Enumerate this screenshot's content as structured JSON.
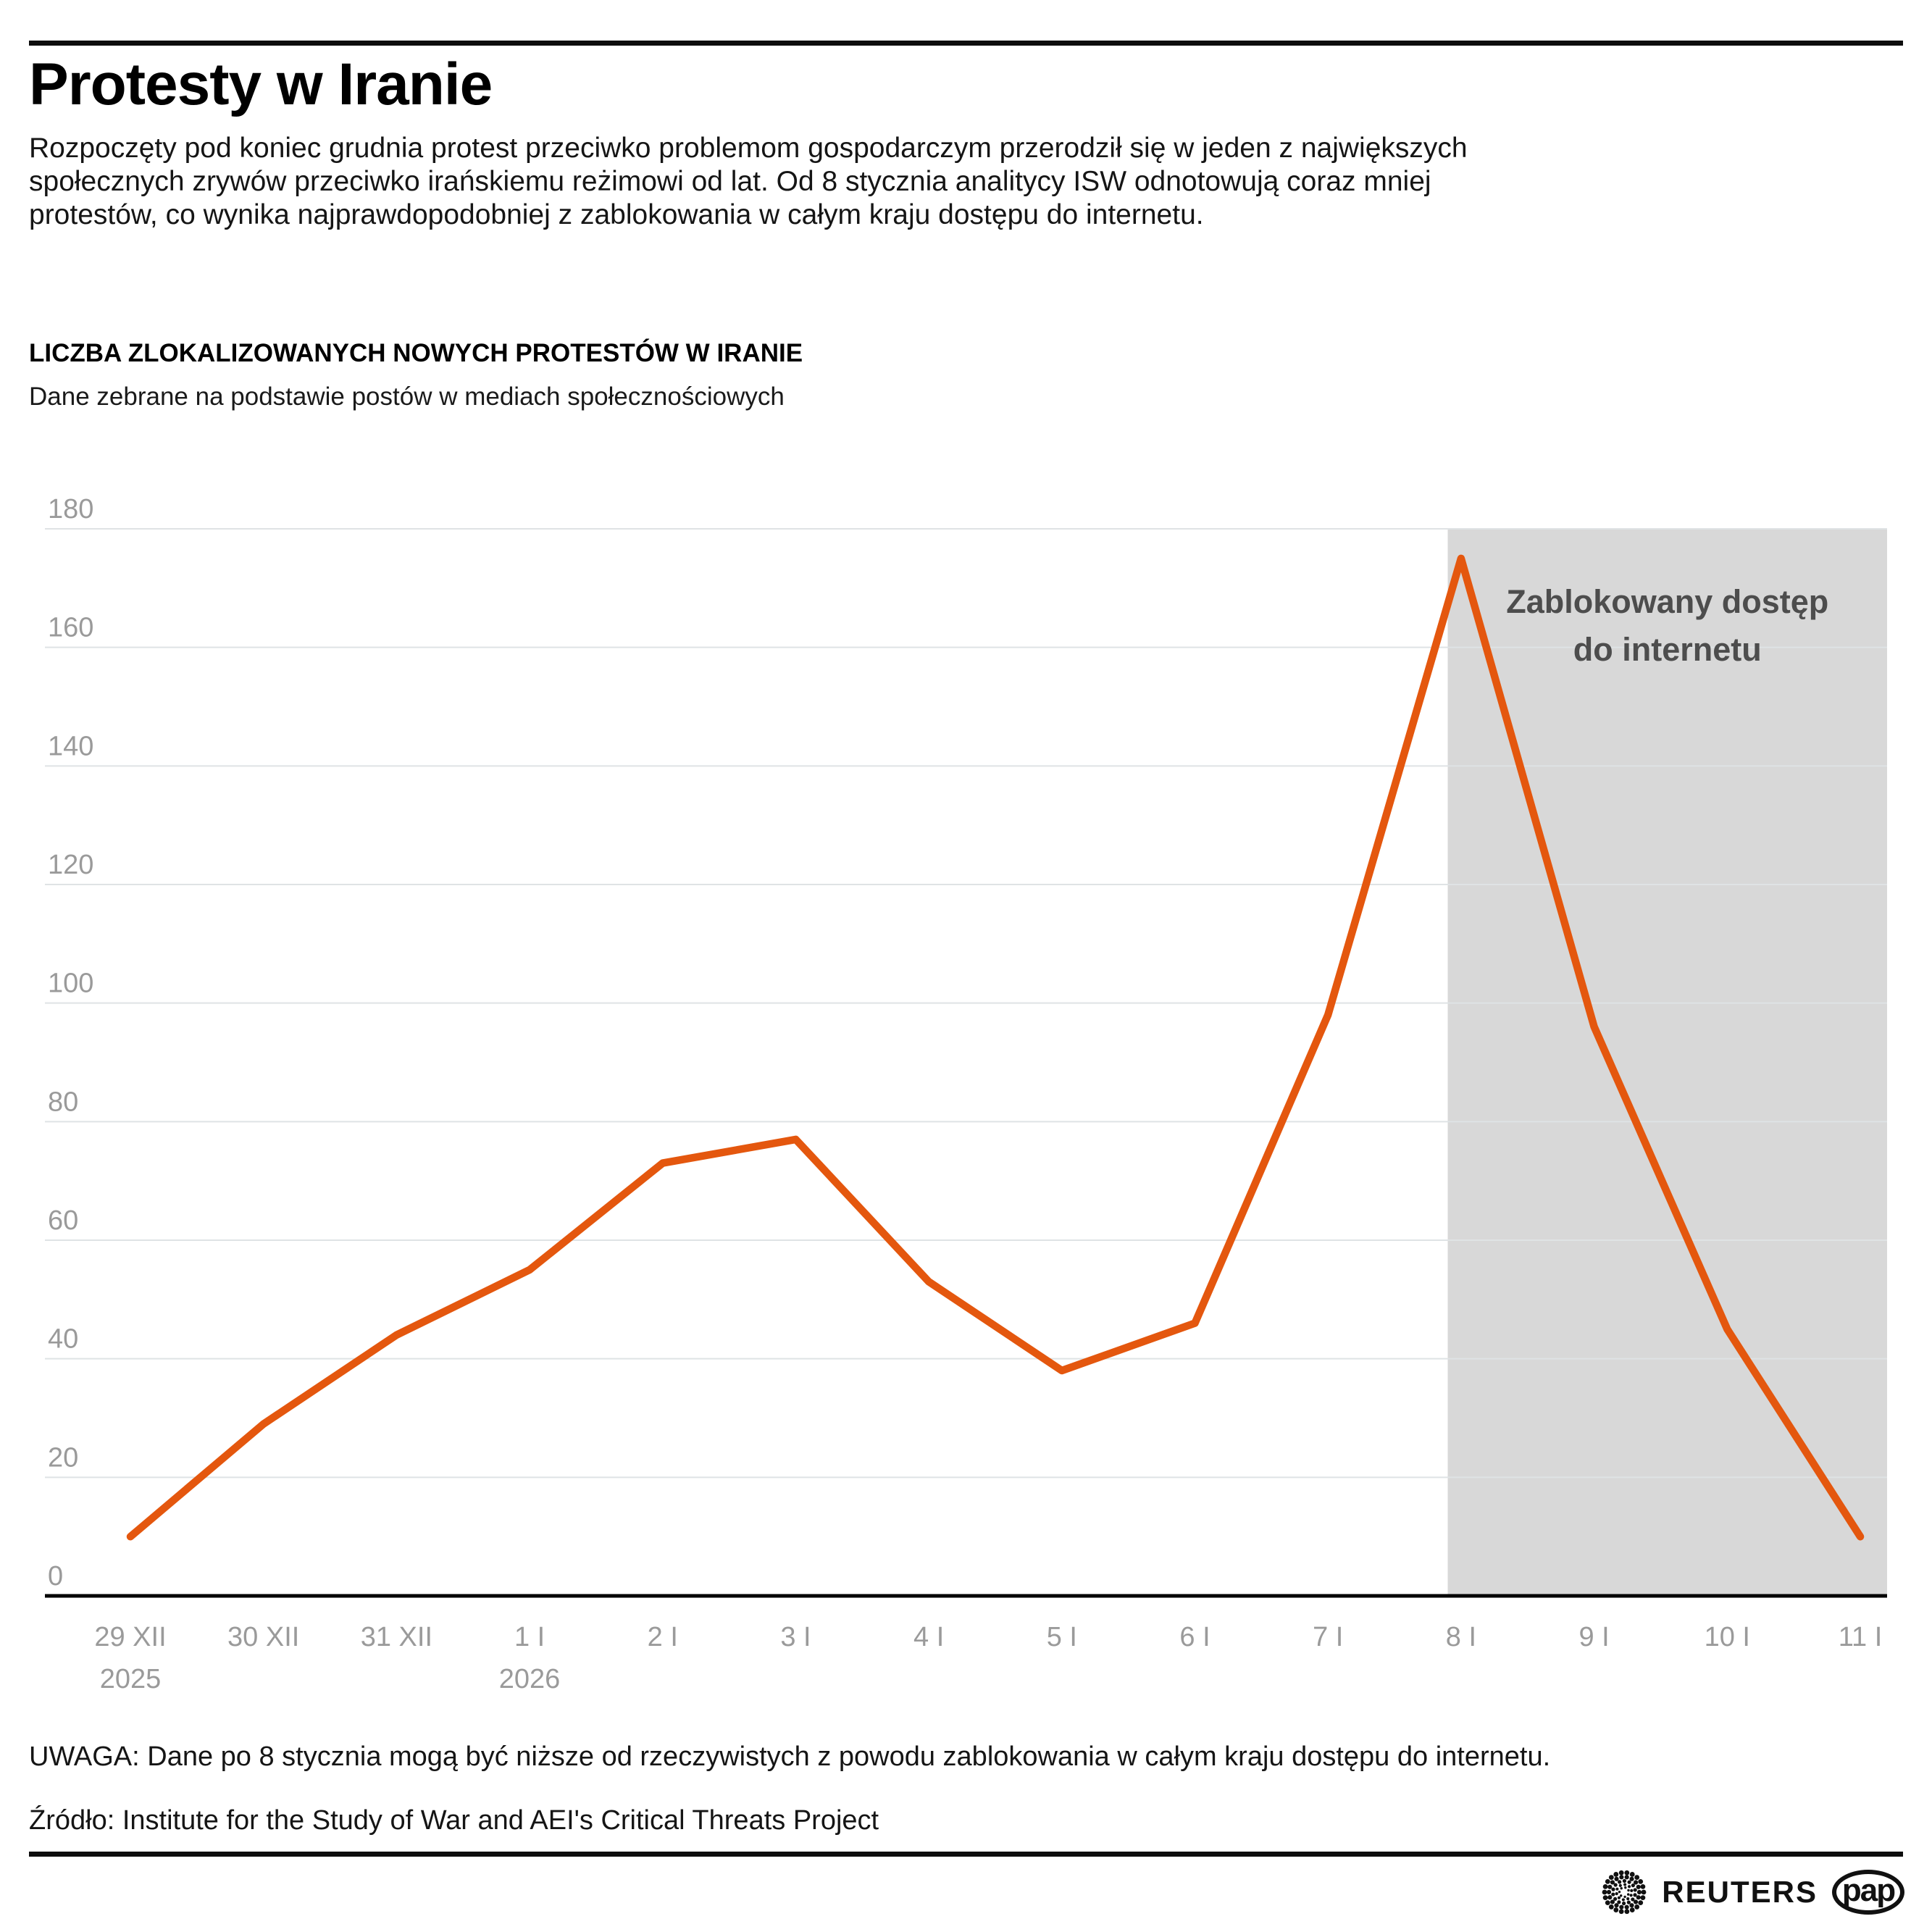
{
  "header": {
    "title": "Protesty w Iranie",
    "intro_lines": [
      "Rozpoczęty pod koniec grudnia protest przeciwko problemom gospodarczym przerodził się w jeden z największych",
      "społecznych zrywów przeciwko irańskiemu reżimowi od lat. Od 8 stycznia analitycy ISW odnotowują coraz mniej",
      "protestów, co wynika najprawdopodobniej z zablokowania w całym kraju dostępu do internetu."
    ]
  },
  "chart_data": {
    "type": "line",
    "title": "LICZBA ZLOKALIZOWANYCH NOWYCH PROTESTÓW W IRANIE",
    "subtitle": "Dane zebrane na podstawie postów w mediach społecznościowych",
    "categories": [
      "29 XII",
      "30 XII",
      "31 XII",
      "1 I",
      "2 I",
      "3 I",
      "4 I",
      "5 I",
      "6 I",
      "7 I",
      "8 I",
      "9 I",
      "10 I",
      "11 I"
    ],
    "x_sublabels": [
      {
        "index": 0,
        "label": "2025"
      },
      {
        "index": 3,
        "label": "2026"
      }
    ],
    "values": [
      10,
      29,
      44,
      55,
      73,
      77,
      53,
      38,
      46,
      98,
      175,
      96,
      45,
      10
    ],
    "xlabel": "",
    "ylabel": "",
    "ylim": [
      0,
      180
    ],
    "ytick_step": 20,
    "grid": true,
    "legend": "none",
    "line_color": "#E4570E",
    "line_width": 10.5,
    "gridline_color": "#DFE3E5",
    "axis_color": "#000000",
    "tick_label_color": "#9A9A9A",
    "shaded_region": {
      "start_index": 9.9,
      "end": "plot-right",
      "color": "#D8D8D8",
      "label_line1": "Zablokowany dostęp",
      "label_line2": "do internetu",
      "label_color": "#4D4D4D"
    }
  },
  "footer": {
    "note": "UWAGA: Dane po 8 stycznia mogą być niższe od rzeczywistych z powodu zablokowania w całym kraju dostępu do internetu.",
    "source": "Źródło: Institute for the Study of War and AEI's Critical Threats Project",
    "logos": {
      "reuters": "REUTERS",
      "pap": "pap"
    }
  }
}
